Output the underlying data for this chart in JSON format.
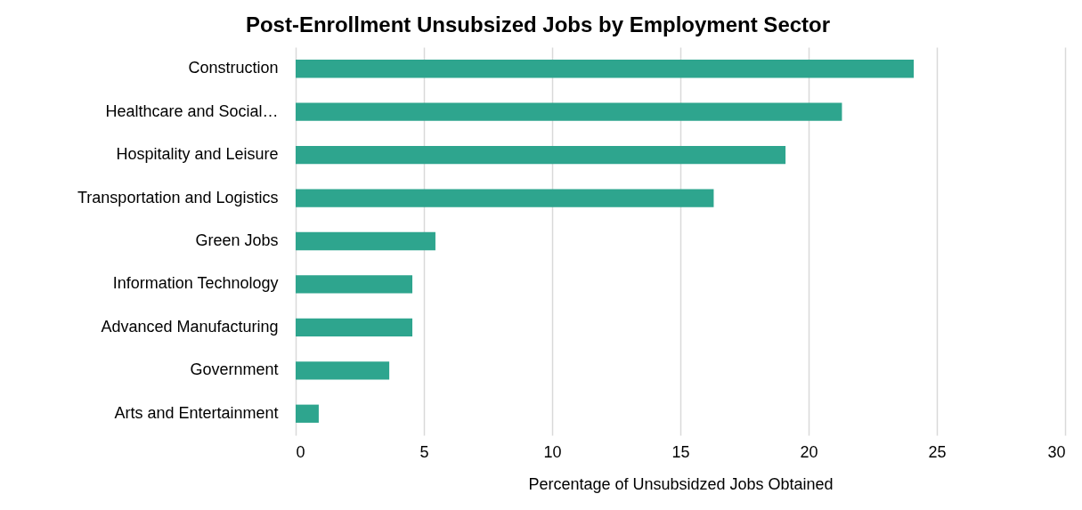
{
  "chart_data": {
    "type": "bar",
    "orientation": "horizontal",
    "title": "Post-Enrollment Unsubsized Jobs by Employment Sector",
    "xlabel": "Percentage of Unsubsidzed Jobs Obtained",
    "categories": [
      "Construction",
      "Healthcare and Social…",
      "Hospitality and Leisure",
      "Transportation and Logistics",
      "Green Jobs",
      "Information Technology",
      "Advanced Manufacturing",
      "Government",
      "Arts and Entertainment"
    ],
    "values": [
      24.1,
      21.3,
      19.1,
      16.3,
      5.45,
      4.55,
      4.55,
      3.65,
      0.9
    ],
    "color": "#2ea58e",
    "xlim": [
      0,
      30
    ],
    "xticks": [
      0,
      5,
      10,
      15,
      20,
      25,
      30
    ],
    "grid": "x"
  }
}
